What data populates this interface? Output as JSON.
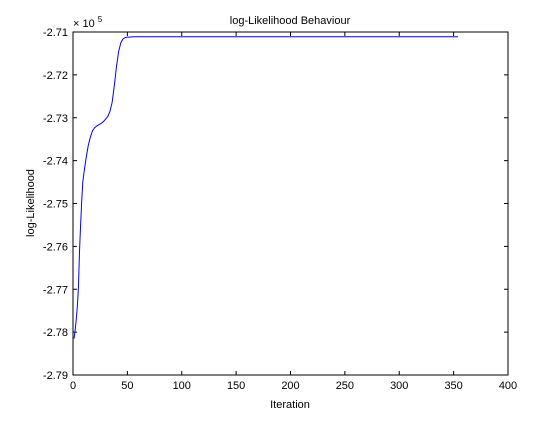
{
  "chart_data": {
    "type": "line",
    "title": "log-Likelihood Behaviour",
    "xlabel": "Iteration",
    "ylabel": "log-Likelihood",
    "exponent_label": {
      "prefix": "× 10",
      "power": "5"
    },
    "xlim": [
      0,
      400
    ],
    "ylim": [
      -2.79,
      -2.71
    ],
    "x_ticks": [
      0,
      50,
      100,
      150,
      200,
      250,
      300,
      350,
      400
    ],
    "x_tick_labels": [
      "0",
      "50",
      "100",
      "150",
      "200",
      "250",
      "300",
      "350",
      "400"
    ],
    "y_ticks": [
      -2.79,
      -2.78,
      -2.77,
      -2.76,
      -2.75,
      -2.74,
      -2.73,
      -2.72,
      -2.71
    ],
    "y_tick_labels": [
      "-2.79",
      "-2.78",
      "-2.77",
      "-2.76",
      "-2.75",
      "-2.74",
      "-2.73",
      "-2.72",
      "-2.71"
    ],
    "grid": false,
    "line_color": "#0000ff",
    "series": [
      {
        "x": [
          1,
          2,
          3,
          4,
          5,
          6,
          7,
          8,
          9,
          10,
          12,
          14,
          16,
          18,
          20,
          22,
          24,
          26,
          28,
          30,
          32,
          34,
          36,
          38,
          40,
          42,
          44,
          46,
          48,
          50,
          52,
          55,
          60,
          80,
          100,
          150,
          200,
          250,
          300,
          350,
          354
        ],
        "y": [
          -2.7815,
          -2.7795,
          -2.777,
          -2.774,
          -2.7695,
          -2.761,
          -2.755,
          -2.7495,
          -2.745,
          -2.743,
          -2.7395,
          -2.7365,
          -2.7345,
          -2.733,
          -2.7323,
          -2.7319,
          -2.7316,
          -2.7313,
          -2.7309,
          -2.7303,
          -2.7297,
          -2.7285,
          -2.7264,
          -2.7225,
          -2.718,
          -2.7145,
          -2.7125,
          -2.7116,
          -2.7113,
          -2.7112,
          -2.7112,
          -2.7111,
          -2.7111,
          -2.7111,
          -2.7111,
          -2.7111,
          -2.7111,
          -2.7111,
          -2.7111,
          -2.7111,
          -2.7111
        ]
      }
    ]
  }
}
